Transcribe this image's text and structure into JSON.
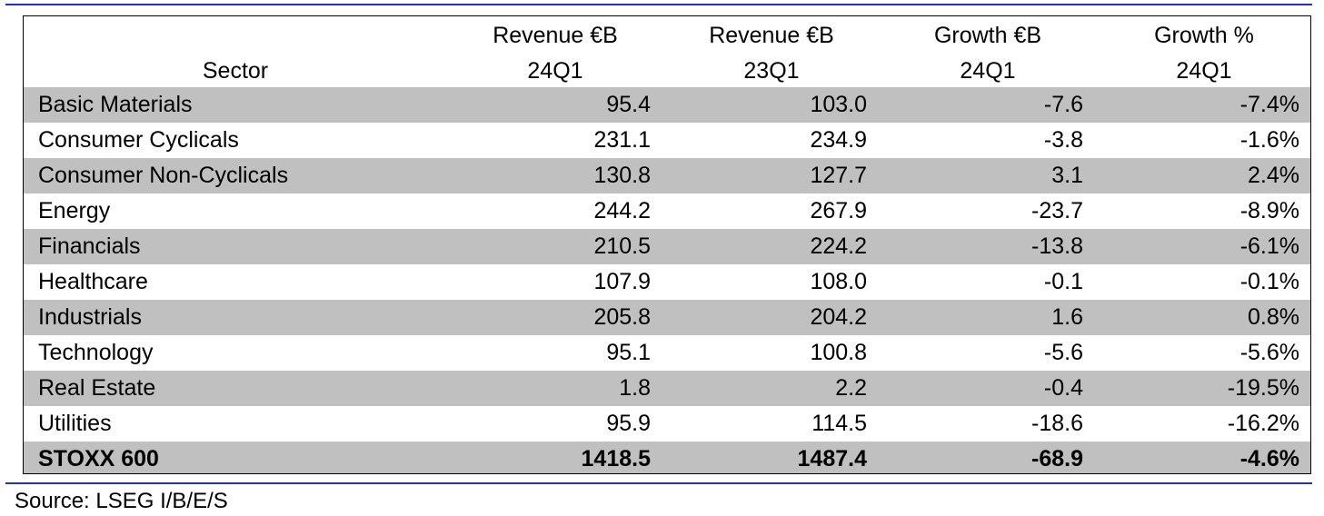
{
  "table": {
    "header": {
      "sector": "Sector",
      "columns": [
        {
          "line1": "Revenue €B",
          "line2": "24Q1"
        },
        {
          "line1": "Revenue €B",
          "line2": "23Q1"
        },
        {
          "line1": "Growth €B",
          "line2": "24Q1"
        },
        {
          "line1": "Growth %",
          "line2": "24Q1"
        }
      ]
    },
    "rows": [
      {
        "sector": "Basic Materials",
        "rev24": "95.4",
        "rev23": "103.0",
        "growth_eur": "-7.6",
        "growth_pct": "-7.4%"
      },
      {
        "sector": "Consumer Cyclicals",
        "rev24": "231.1",
        "rev23": "234.9",
        "growth_eur": "-3.8",
        "growth_pct": "-1.6%"
      },
      {
        "sector": "Consumer Non-Cyclicals",
        "rev24": "130.8",
        "rev23": "127.7",
        "growth_eur": "3.1",
        "growth_pct": "2.4%"
      },
      {
        "sector": "Energy",
        "rev24": "244.2",
        "rev23": "267.9",
        "growth_eur": "-23.7",
        "growth_pct": "-8.9%"
      },
      {
        "sector": "Financials",
        "rev24": "210.5",
        "rev23": "224.2",
        "growth_eur": "-13.8",
        "growth_pct": "-6.1%"
      },
      {
        "sector": "Healthcare",
        "rev24": "107.9",
        "rev23": "108.0",
        "growth_eur": "-0.1",
        "growth_pct": "-0.1%"
      },
      {
        "sector": "Industrials",
        "rev24": "205.8",
        "rev23": "204.2",
        "growth_eur": "1.6",
        "growth_pct": "0.8%"
      },
      {
        "sector": "Technology",
        "rev24": "95.1",
        "rev23": "100.8",
        "growth_eur": "-5.6",
        "growth_pct": "-5.6%"
      },
      {
        "sector": "Real Estate",
        "rev24": "1.8",
        "rev23": "2.2",
        "growth_eur": "-0.4",
        "growth_pct": "-19.5%"
      },
      {
        "sector": "Utilities",
        "rev24": "95.9",
        "rev23": "114.5",
        "growth_eur": "-18.6",
        "growth_pct": "-16.2%"
      }
    ],
    "total": {
      "sector": "STOXX 600",
      "rev24": "1418.5",
      "rev23": "1487.4",
      "growth_eur": "-68.9",
      "growth_pct": "-4.6%"
    }
  },
  "source": "Source: LSEG I/B/E/S",
  "colors": {
    "rule": "#1f2fc9",
    "row_shade": "#c0c0c0"
  }
}
